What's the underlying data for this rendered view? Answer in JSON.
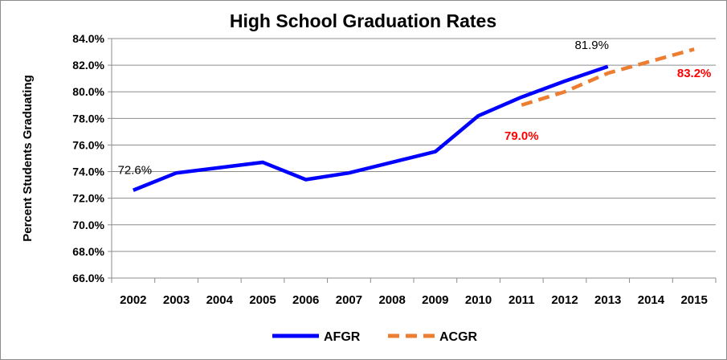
{
  "chart_data": {
    "type": "line",
    "title": "High School Graduation Rates",
    "xlabel": "",
    "ylabel": "Percent Students Graduating",
    "categories": [
      "2002",
      "2003",
      "2004",
      "2005",
      "2006",
      "2007",
      "2008",
      "2009",
      "2010",
      "2011",
      "2012",
      "2013",
      "2014",
      "2015"
    ],
    "y_ticks": [
      "66.0%",
      "68.0%",
      "70.0%",
      "72.0%",
      "74.0%",
      "76.0%",
      "78.0%",
      "80.0%",
      "82.0%",
      "84.0%"
    ],
    "ylim": [
      66,
      84
    ],
    "grid": true,
    "legend_position": "bottom",
    "series": [
      {
        "name": "AFGR",
        "color": "#0000ff",
        "style": "solid",
        "points": [
          {
            "x": "2002",
            "y": 72.6
          },
          {
            "x": "2003",
            "y": 73.9
          },
          {
            "x": "2004",
            "y": 74.3
          },
          {
            "x": "2005",
            "y": 74.7
          },
          {
            "x": "2006",
            "y": 73.4
          },
          {
            "x": "2007",
            "y": 73.9
          },
          {
            "x": "2008",
            "y": 74.7
          },
          {
            "x": "2009",
            "y": 75.5
          },
          {
            "x": "2010",
            "y": 78.2
          },
          {
            "x": "2011",
            "y": 79.6
          },
          {
            "x": "2012",
            "y": 80.8
          },
          {
            "x": "2013",
            "y": 81.9
          }
        ]
      },
      {
        "name": "ACGR",
        "color": "#ed7d31",
        "style": "dashed",
        "points": [
          {
            "x": "2011",
            "y": 79.0
          },
          {
            "x": "2012",
            "y": 80.0
          },
          {
            "x": "2013",
            "y": 81.4
          },
          {
            "x": "2014",
            "y": 82.3
          },
          {
            "x": "2015",
            "y": 83.2
          }
        ]
      }
    ],
    "annotations": [
      {
        "text": "72.6%",
        "series": "AFGR",
        "x": "2002",
        "y": 72.6,
        "color": "#000000"
      },
      {
        "text": "81.9%",
        "series": "AFGR",
        "x": "2013",
        "y": 81.9,
        "color": "#000000"
      },
      {
        "text": "79.0%",
        "series": "ACGR",
        "x": "2011",
        "y": 79.0,
        "color": "#ff0000"
      },
      {
        "text": "83.2%",
        "series": "ACGR",
        "x": "2015",
        "y": 83.2,
        "color": "#ff0000"
      }
    ]
  }
}
